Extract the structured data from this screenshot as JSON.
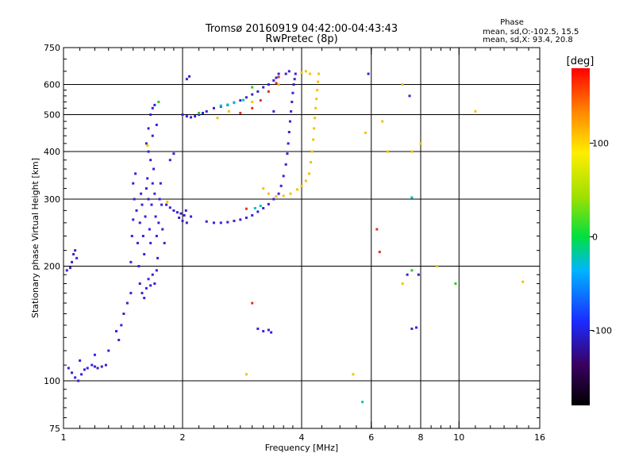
{
  "chart_data": {
    "type": "scatter",
    "title": "Tromsø 20160919 04:42:00-04:43:43",
    "subtitle": "RwPretec (8p)",
    "xlabel": "Frequency [MHz]",
    "ylabel": "Stationary phase Virtual Height [km]",
    "x_scale": "log",
    "y_scale": "log",
    "xlim": [
      1,
      16
    ],
    "ylim": [
      75,
      750
    ],
    "x_ticks": [
      1,
      2,
      4,
      6,
      8,
      10,
      16
    ],
    "x_tick_labels": [
      "1",
      "2",
      "4",
      "6",
      "8",
      "10",
      "16"
    ],
    "y_ticks": [
      75,
      100,
      200,
      300,
      400,
      500,
      600,
      750
    ],
    "y_tick_labels": [
      "75",
      "100",
      "200",
      "300",
      "400",
      "500",
      "600",
      "750"
    ],
    "grid": true,
    "stats": {
      "title": "Phase",
      "line1": "mean, sd,O:-102.5, 15.5",
      "line2": "mean, sd,X:  93.4, 20.8"
    },
    "colorbar": {
      "label": "[deg]",
      "range": [
        -180,
        180
      ],
      "ticks": [
        100,
        0,
        -100
      ],
      "tick_labels": [
        "100",
        "0",
        "-100"
      ]
    },
    "series": [
      {
        "phase": -115,
        "color": "#3a1fd8",
        "points": [
          [
            1.02,
            195
          ],
          [
            1.05,
            205
          ],
          [
            1.06,
            215
          ],
          [
            1.07,
            220
          ],
          [
            1.08,
            210
          ],
          [
            1.04,
            198
          ],
          [
            1.03,
            108
          ],
          [
            1.05,
            105
          ],
          [
            1.07,
            102
          ],
          [
            1.09,
            100
          ],
          [
            1.11,
            104
          ],
          [
            1.13,
            107
          ],
          [
            1.15,
            108
          ],
          [
            1.18,
            110
          ],
          [
            1.2,
            109
          ],
          [
            1.22,
            108
          ],
          [
            1.25,
            109
          ],
          [
            1.28,
            110
          ],
          [
            1.1,
            113
          ],
          [
            1.2,
            117
          ],
          [
            1.3,
            120
          ],
          [
            1.36,
            135
          ],
          [
            1.38,
            128
          ],
          [
            1.4,
            140
          ],
          [
            1.42,
            150
          ],
          [
            1.45,
            160
          ],
          [
            1.48,
            170
          ],
          [
            1.48,
            205
          ],
          [
            1.49,
            240
          ],
          [
            1.5,
            265
          ],
          [
            1.51,
            300
          ],
          [
            1.5,
            330
          ],
          [
            1.52,
            350
          ],
          [
            1.53,
            280
          ],
          [
            1.54,
            230
          ],
          [
            1.55,
            200
          ],
          [
            1.56,
            260
          ],
          [
            1.57,
            310
          ],
          [
            1.58,
            290
          ],
          [
            1.59,
            240
          ],
          [
            1.6,
            215
          ],
          [
            1.61,
            270
          ],
          [
            1.62,
            320
          ],
          [
            1.63,
            340
          ],
          [
            1.64,
            300
          ],
          [
            1.65,
            250
          ],
          [
            1.66,
            230
          ],
          [
            1.67,
            290
          ],
          [
            1.68,
            330
          ],
          [
            1.69,
            360
          ],
          [
            1.7,
            310
          ],
          [
            1.71,
            270
          ],
          [
            1.72,
            240
          ],
          [
            1.73,
            210
          ],
          [
            1.74,
            260
          ],
          [
            1.75,
            300
          ],
          [
            1.76,
            330
          ],
          [
            1.77,
            290
          ],
          [
            1.78,
            250
          ],
          [
            1.8,
            230
          ],
          [
            1.56,
            180
          ],
          [
            1.58,
            170
          ],
          [
            1.6,
            165
          ],
          [
            1.62,
            175
          ],
          [
            1.64,
            185
          ],
          [
            1.66,
            178
          ],
          [
            1.68,
            190
          ],
          [
            1.7,
            180
          ],
          [
            1.72,
            195
          ],
          [
            1.62,
            420
          ],
          [
            1.64,
            460
          ],
          [
            1.66,
            500
          ],
          [
            1.68,
            520
          ],
          [
            1.7,
            530
          ],
          [
            1.68,
            440
          ],
          [
            1.66,
            380
          ],
          [
            1.64,
            400
          ],
          [
            1.72,
            470
          ],
          [
            1.82,
            290
          ],
          [
            1.86,
            285
          ],
          [
            1.9,
            280
          ],
          [
            1.94,
            277
          ],
          [
            1.98,
            275
          ],
          [
            2.02,
            272
          ],
          [
            1.96,
            268
          ],
          [
            2.0,
            263
          ],
          [
            2.05,
            260
          ],
          [
            2.1,
            270
          ],
          [
            2.04,
            280
          ],
          [
            2.0,
            500
          ],
          [
            2.05,
            495
          ],
          [
            2.1,
            492
          ],
          [
            2.15,
            495
          ],
          [
            2.2,
            500
          ],
          [
            2.25,
            505
          ],
          [
            2.3,
            510
          ],
          [
            2.3,
            262
          ],
          [
            2.4,
            260
          ],
          [
            2.5,
            260
          ],
          [
            2.6,
            261
          ],
          [
            2.7,
            263
          ],
          [
            2.8,
            265
          ],
          [
            2.9,
            268
          ],
          [
            3.0,
            272
          ],
          [
            3.1,
            278
          ],
          [
            3.2,
            284
          ],
          [
            3.3,
            291
          ],
          [
            3.4,
            300
          ],
          [
            3.5,
            310
          ],
          [
            3.55,
            325
          ],
          [
            3.6,
            345
          ],
          [
            3.65,
            370
          ],
          [
            3.68,
            395
          ],
          [
            3.7,
            420
          ],
          [
            3.72,
            450
          ],
          [
            3.74,
            480
          ],
          [
            3.76,
            510
          ],
          [
            3.78,
            540
          ],
          [
            3.8,
            570
          ],
          [
            3.82,
            600
          ],
          [
            3.84,
            620
          ],
          [
            3.86,
            640
          ],
          [
            2.4,
            520
          ],
          [
            2.5,
            525
          ],
          [
            2.6,
            530
          ],
          [
            2.7,
            538
          ],
          [
            2.8,
            545
          ],
          [
            2.9,
            555
          ],
          [
            3.0,
            565
          ],
          [
            3.1,
            575
          ],
          [
            3.2,
            590
          ],
          [
            3.3,
            600
          ],
          [
            3.4,
            615
          ],
          [
            3.45,
            625
          ],
          [
            3.5,
            640
          ],
          [
            3.1,
            137
          ],
          [
            3.2,
            135
          ],
          [
            3.3,
            136
          ],
          [
            3.35,
            134
          ],
          [
            1.86,
            380
          ],
          [
            1.9,
            395
          ],
          [
            2.05,
            620
          ],
          [
            2.08,
            630
          ],
          [
            3.65,
            640
          ],
          [
            3.72,
            650
          ],
          [
            7.6,
            137
          ],
          [
            7.8,
            138
          ],
          [
            7.5,
            560
          ],
          [
            7.9,
            190
          ],
          [
            7.4,
            190
          ],
          [
            3.4,
            510
          ],
          [
            5.9,
            640
          ]
        ]
      },
      {
        "phase": 95,
        "color": "#f5c200",
        "points": [
          [
            3.3,
            310
          ],
          [
            3.45,
            305
          ],
          [
            3.6,
            306
          ],
          [
            3.75,
            310
          ],
          [
            3.9,
            318
          ],
          [
            4.0,
            325
          ],
          [
            4.1,
            335
          ],
          [
            4.18,
            350
          ],
          [
            4.22,
            375
          ],
          [
            4.25,
            400
          ],
          [
            4.28,
            430
          ],
          [
            4.3,
            460
          ],
          [
            4.32,
            490
          ],
          [
            4.34,
            520
          ],
          [
            4.36,
            550
          ],
          [
            4.38,
            580
          ],
          [
            4.4,
            610
          ],
          [
            4.42,
            640
          ],
          [
            4.0,
            645
          ],
          [
            4.1,
            650
          ],
          [
            4.2,
            640
          ],
          [
            1.63,
            415
          ],
          [
            1.83,
            295
          ],
          [
            2.45,
            490
          ],
          [
            2.62,
            510
          ],
          [
            3.0,
            540
          ],
          [
            3.5,
            600
          ],
          [
            5.8,
            448
          ],
          [
            6.4,
            480
          ],
          [
            6.6,
            400
          ],
          [
            7.2,
            600
          ],
          [
            7.2,
            180
          ],
          [
            8.0,
            420
          ],
          [
            8.8,
            200
          ],
          [
            11.0,
            510
          ],
          [
            14.5,
            182
          ],
          [
            2.9,
            104
          ],
          [
            5.4,
            104
          ],
          [
            7.6,
            400
          ],
          [
            3.2,
            320
          ]
        ]
      },
      {
        "phase": -20,
        "color": "#00c2c0",
        "points": [
          [
            2.5,
            528
          ],
          [
            2.6,
            531
          ],
          [
            2.7,
            537
          ],
          [
            2.85,
            546
          ],
          [
            5.7,
            88
          ],
          [
            7.6,
            303
          ],
          [
            3.05,
            284
          ],
          [
            3.15,
            288
          ]
        ]
      },
      {
        "phase": 150,
        "color": "#e43020",
        "points": [
          [
            2.8,
            505
          ],
          [
            3.0,
            520
          ],
          [
            3.15,
            545
          ],
          [
            3.3,
            575
          ],
          [
            3.45,
            605
          ],
          [
            3.5,
            628
          ],
          [
            6.2,
            250
          ],
          [
            6.3,
            218
          ],
          [
            2.9,
            283
          ],
          [
            3.0,
            160
          ]
        ]
      },
      {
        "phase": 40,
        "color": "#2ec820",
        "points": [
          [
            1.74,
            540
          ],
          [
            2.2,
            505
          ],
          [
            3.0,
            590
          ],
          [
            7.6,
            195
          ],
          [
            9.8,
            180
          ]
        ]
      }
    ]
  }
}
